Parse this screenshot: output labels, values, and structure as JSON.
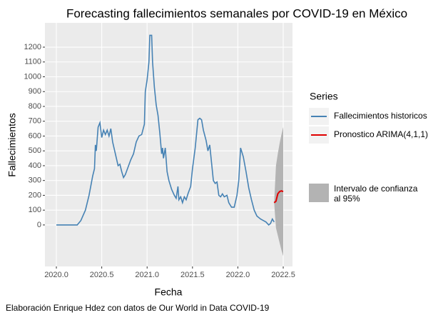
{
  "chart_data": {
    "type": "line",
    "title": "Forecasting fallecimientos semanales por COVID-19 en México",
    "x_label": "Fecha",
    "y_label": "Fallecimientos",
    "caption": "Elaboración Enrique Hdez con datos de Our World in Data COVID-19",
    "legend_title": "Series",
    "xlim": [
      2019.874,
      2022.602
    ],
    "ylim": [
      -280,
      1364
    ],
    "xticks": [
      {
        "value": 2020.0,
        "label": "2020.0"
      },
      {
        "value": 2020.5,
        "label": "2020.5"
      },
      {
        "value": 2021.0,
        "label": "2021.0"
      },
      {
        "value": 2021.5,
        "label": "2021.5"
      },
      {
        "value": 2022.0,
        "label": "2022.0"
      },
      {
        "value": 2022.5,
        "label": "2022.5"
      }
    ],
    "yticks": [
      0,
      100,
      200,
      300,
      400,
      500,
      600,
      700,
      800,
      900,
      1000,
      1100,
      1200
    ],
    "grid": true,
    "series": [
      {
        "name": "Fallecimientos historicos",
        "color": "#4682b4",
        "x": [
          2020.0,
          2020.23,
          2020.27,
          2020.32,
          2020.36,
          2020.4,
          2020.42,
          2020.43,
          2020.44,
          2020.46,
          2020.48,
          2020.5,
          2020.52,
          2020.54,
          2020.56,
          2020.58,
          2020.6,
          2020.62,
          2020.65,
          2020.68,
          2020.7,
          2020.72,
          2020.74,
          2020.76,
          2020.79,
          2020.82,
          2020.85,
          2020.88,
          2020.91,
          2020.94,
          2020.97,
          2020.98,
          2021.0,
          2021.02,
          2021.03,
          2021.05,
          2021.06,
          2021.08,
          2021.1,
          2021.12,
          2021.14,
          2021.16,
          2021.17,
          2021.18,
          2021.2,
          2021.22,
          2021.24,
          2021.27,
          2021.3,
          2021.32,
          2021.34,
          2021.35,
          2021.37,
          2021.39,
          2021.41,
          2021.43,
          2021.45,
          2021.48,
          2021.5,
          2021.53,
          2021.56,
          2021.58,
          2021.6,
          2021.62,
          2021.65,
          2021.67,
          2021.69,
          2021.71,
          2021.73,
          2021.75,
          2021.77,
          2021.79,
          2021.81,
          2021.83,
          2021.85,
          2021.88,
          2021.9,
          2021.93,
          2021.96,
          2021.99,
          2022.01,
          2022.03,
          2022.06,
          2022.09,
          2022.12,
          2022.15,
          2022.18,
          2022.21,
          2022.25,
          2022.28,
          2022.31,
          2022.34,
          2022.36,
          2022.38,
          2022.4
        ],
        "values": [
          0,
          0,
          30,
          100,
          200,
          330,
          380,
          540,
          500,
          660,
          690,
          590,
          640,
          610,
          640,
          600,
          650,
          560,
          480,
          400,
          410,
          360,
          320,
          340,
          390,
          440,
          480,
          560,
          600,
          610,
          680,
          900,
          980,
          1100,
          1280,
          1280,
          1100,
          930,
          810,
          740,
          620,
          480,
          520,
          450,
          520,
          360,
          300,
          240,
          200,
          180,
          260,
          170,
          190,
          150,
          190,
          170,
          210,
          260,
          380,
          520,
          710,
          720,
          710,
          640,
          570,
          500,
          540,
          420,
          300,
          280,
          290,
          200,
          190,
          210,
          190,
          200,
          150,
          120,
          120,
          200,
          300,
          520,
          460,
          360,
          250,
          170,
          100,
          60,
          40,
          30,
          20,
          0,
          10,
          40,
          20
        ]
      },
      {
        "name": "Pronostico ARIMA(4,1,1)",
        "color": "#e00000",
        "x": [
          2022.4,
          2022.42,
          2022.44,
          2022.46,
          2022.48,
          2022.5
        ],
        "values": [
          150,
          160,
          210,
          225,
          230,
          225
        ]
      }
    ],
    "band": {
      "name": [
        "Intervalo de confianza",
        "al 95%"
      ],
      "color": "#b3b3b3",
      "x": [
        2022.4,
        2022.42,
        2022.44,
        2022.46,
        2022.48,
        2022.5
      ],
      "upper": [
        150,
        400,
        480,
        550,
        610,
        660
      ],
      "lower": [
        150,
        -20,
        -70,
        -120,
        -170,
        -210
      ]
    }
  }
}
